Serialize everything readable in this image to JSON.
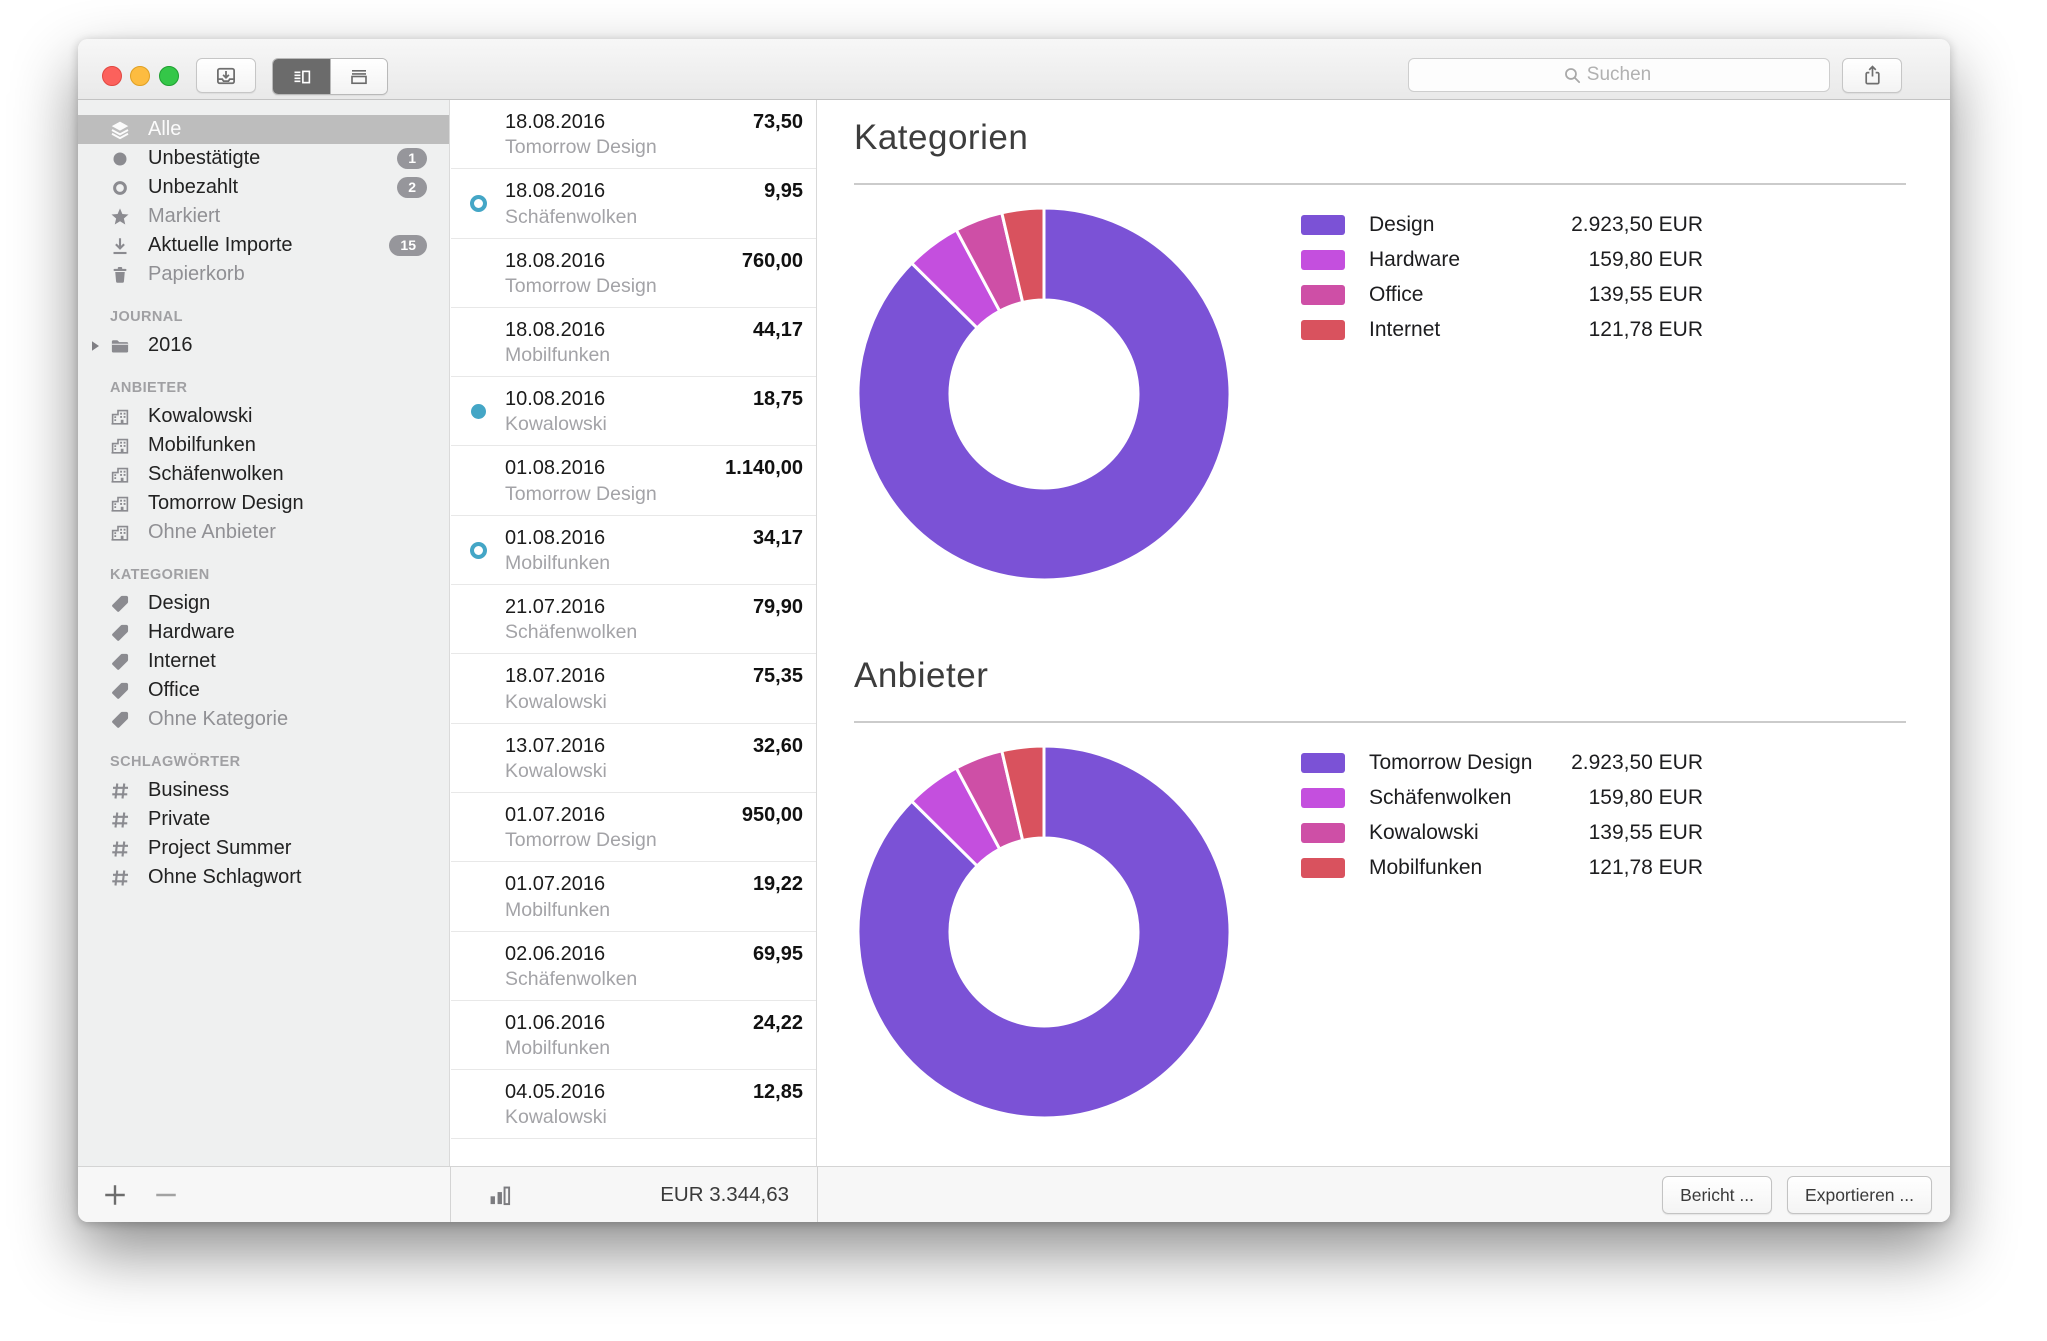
{
  "toolbar": {
    "search_placeholder": "Suchen",
    "traffic_lights": [
      "close",
      "minimize",
      "zoom"
    ],
    "import_icon": "import-tray",
    "view_segments": [
      {
        "icon": "view-columns",
        "selected": true
      },
      {
        "icon": "view-rows",
        "selected": false
      }
    ],
    "share_icon": "share"
  },
  "sidebar": {
    "sections": [
      {
        "header": null,
        "items": [
          {
            "icon": "layers",
            "label": "Alle",
            "selected": true
          },
          {
            "icon": "circle-filled",
            "label": "Unbestätigte",
            "badge": "1"
          },
          {
            "icon": "circle-open",
            "label": "Unbezahlt",
            "badge": "2"
          },
          {
            "icon": "star",
            "label": "Markiert",
            "muted": true
          },
          {
            "icon": "download",
            "label": "Aktuelle Importe",
            "badge": "15"
          },
          {
            "icon": "trash",
            "label": "Papierkorb",
            "muted": true
          }
        ]
      },
      {
        "header": "JOURNAL",
        "items": [
          {
            "icon": "folder",
            "label": "2016",
            "disclosure": true
          }
        ]
      },
      {
        "header": "ANBIETER",
        "items": [
          {
            "icon": "building",
            "label": "Kowalowski"
          },
          {
            "icon": "building",
            "label": "Mobilfunken"
          },
          {
            "icon": "building",
            "label": "Schäfenwolken"
          },
          {
            "icon": "building",
            "label": "Tomorrow Design"
          },
          {
            "icon": "building",
            "label": "Ohne Anbieter",
            "muted": true
          }
        ]
      },
      {
        "header": "KATEGORIEN",
        "items": [
          {
            "icon": "tag",
            "label": "Design"
          },
          {
            "icon": "tag",
            "label": "Hardware"
          },
          {
            "icon": "tag",
            "label": "Internet"
          },
          {
            "icon": "tag",
            "label": "Office"
          },
          {
            "icon": "tag",
            "label": "Ohne Kategorie",
            "muted": true
          }
        ]
      },
      {
        "header": "SCHLAGWÖRTER",
        "items": [
          {
            "icon": "hash",
            "label": "Business"
          },
          {
            "icon": "hash",
            "label": "Private"
          },
          {
            "icon": "hash",
            "label": "Project Summer"
          },
          {
            "icon": "hash",
            "label": "Ohne Schlagwort"
          }
        ]
      }
    ]
  },
  "transactions": [
    {
      "date": "18.08.2016",
      "vendor": "Tomorrow Design",
      "amount": "73,50",
      "status": "none"
    },
    {
      "date": "18.08.2016",
      "vendor": "Schäfenwolken",
      "amount": "9,95",
      "status": "unpaid"
    },
    {
      "date": "18.08.2016",
      "vendor": "Tomorrow Design",
      "amount": "760,00",
      "status": "none"
    },
    {
      "date": "18.08.2016",
      "vendor": "Mobilfunken",
      "amount": "44,17",
      "status": "none"
    },
    {
      "date": "10.08.2016",
      "vendor": "Kowalowski",
      "amount": "18,75",
      "status": "unconfirmed"
    },
    {
      "date": "01.08.2016",
      "vendor": "Tomorrow Design",
      "amount": "1.140,00",
      "status": "none"
    },
    {
      "date": "01.08.2016",
      "vendor": "Mobilfunken",
      "amount": "34,17",
      "status": "unpaid"
    },
    {
      "date": "21.07.2016",
      "vendor": "Schäfenwolken",
      "amount": "79,90",
      "status": "none"
    },
    {
      "date": "18.07.2016",
      "vendor": "Kowalowski",
      "amount": "75,35",
      "status": "none"
    },
    {
      "date": "13.07.2016",
      "vendor": "Kowalowski",
      "amount": "32,60",
      "status": "none"
    },
    {
      "date": "01.07.2016",
      "vendor": "Tomorrow Design",
      "amount": "950,00",
      "status": "none"
    },
    {
      "date": "01.07.2016",
      "vendor": "Mobilfunken",
      "amount": "19,22",
      "status": "none"
    },
    {
      "date": "02.06.2016",
      "vendor": "Schäfenwolken",
      "amount": "69,95",
      "status": "none"
    },
    {
      "date": "01.06.2016",
      "vendor": "Mobilfunken",
      "amount": "24,22",
      "status": "none"
    },
    {
      "date": "04.05.2016",
      "vendor": "Kowalowski",
      "amount": "12,85",
      "status": "none"
    }
  ],
  "chart_data": [
    {
      "type": "pie",
      "donut": true,
      "title": "Kategorien",
      "labels": [
        "Design",
        "Hardware",
        "Office",
        "Internet"
      ],
      "values": [
        2923.5,
        159.8,
        139.55,
        121.78
      ],
      "display_values": [
        "2.923,50 EUR",
        "159,80 EUR",
        "139,55 EUR",
        "121,78 EUR"
      ],
      "colors": [
        "#7b52d6",
        "#c44fde",
        "#ce4fa6",
        "#d9525e"
      ],
      "legend_position": "right",
      "start_angle_deg": -90,
      "direction": "clockwise"
    },
    {
      "type": "pie",
      "donut": true,
      "title": "Anbieter",
      "labels": [
        "Tomorrow Design",
        "Schäfenwolken",
        "Kowalowski",
        "Mobilfunken"
      ],
      "values": [
        2923.5,
        159.8,
        139.55,
        121.78
      ],
      "display_values": [
        "2.923,50 EUR",
        "159,80 EUR",
        "139,55 EUR",
        "121,78 EUR"
      ],
      "colors": [
        "#7b52d6",
        "#c44fde",
        "#ce4fa6",
        "#d9525e"
      ],
      "legend_position": "right",
      "start_angle_deg": -90,
      "direction": "clockwise"
    }
  ],
  "footer": {
    "total": "EUR 3.344,63",
    "report_label": "Bericht ...",
    "export_label": "Exportieren ...",
    "sidebar_action_icons": [
      "plus",
      "minus"
    ],
    "list_icon": "bar-chart"
  },
  "colors": {
    "status_dot": "#44a6c6",
    "selected_sidebar_row": "#bdbdbd",
    "slice_purple": "#7b52d6",
    "slice_magenta": "#c44fde",
    "slice_pink": "#ce4fa6",
    "slice_red": "#d9525e"
  }
}
